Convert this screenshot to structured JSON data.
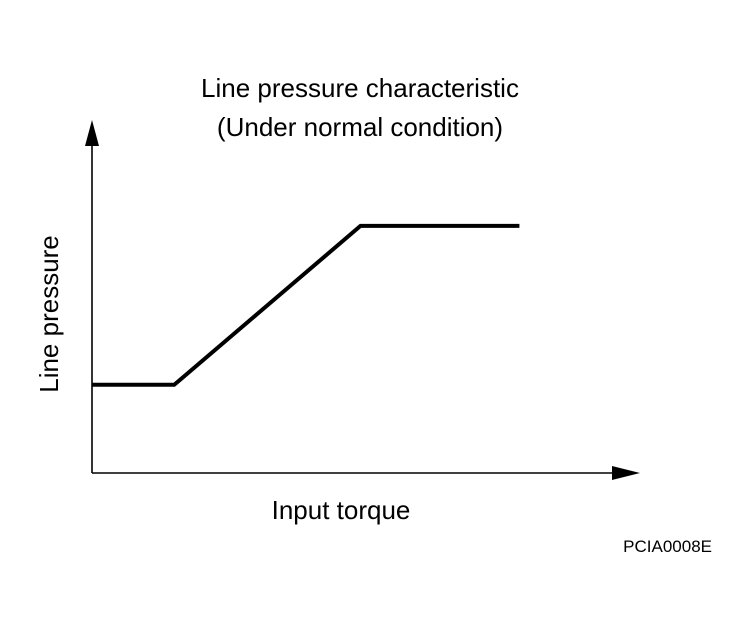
{
  "chart_data": {
    "type": "line",
    "title": "Line pressure characteristic",
    "subtitle": "(Under normal condition)",
    "xlabel": "Input torque",
    "ylabel": "Line pressure",
    "xlim": [
      0,
      100
    ],
    "ylim": [
      0,
      100
    ],
    "grid": false,
    "legend": "none",
    "series": [
      {
        "x": [
          0,
          15,
          49,
          78
        ],
        "y": [
          25,
          25,
          70,
          70
        ]
      }
    ],
    "line_color": "#000000",
    "axis_color": "#000000"
  },
  "figure_code": "PCIA0008E"
}
